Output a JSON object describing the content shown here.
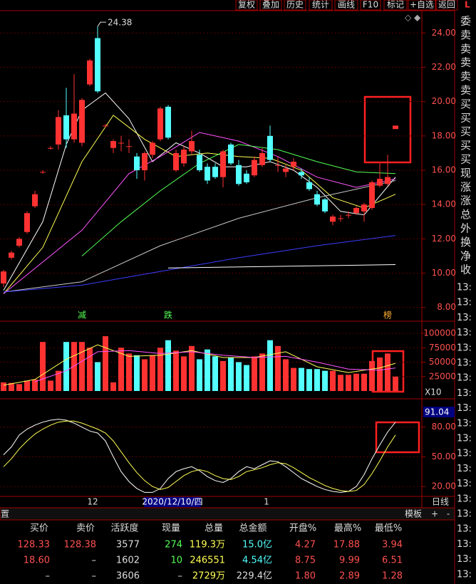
{
  "toolbar": [
    "复权",
    "叠加",
    "历史",
    "统计",
    "画线",
    "F10",
    "标记",
    "+自选",
    "返回"
  ],
  "corner_label": "L",
  "side_labels": [
    "委",
    "卖",
    "卖",
    "卖",
    "卖",
    "卖",
    "买",
    "买",
    "买",
    "买",
    "买",
    "现",
    "涨",
    "涨",
    "总",
    "外",
    "换",
    "净",
    "收"
  ],
  "side_times": [
    "13:",
    "13:",
    "13:",
    "13:",
    "13:",
    "13:",
    "13:",
    "13:",
    "13:",
    "13:",
    "13:",
    "13:",
    "13:",
    "13:",
    "13:",
    "13:",
    "13:",
    "13:",
    "13:",
    "13:"
  ],
  "price_chart": {
    "type": "candlestick",
    "ylim": [
      7.2,
      25.3
    ],
    "yticks": [
      {
        "value": 24,
        "label": "24.00"
      },
      {
        "value": 22,
        "label": "22.00"
      },
      {
        "value": 20,
        "label": "20.00"
      },
      {
        "value": 18,
        "label": "18.00"
      },
      {
        "value": 16,
        "label": "16.00"
      },
      {
        "value": 14,
        "label": "14.00"
      },
      {
        "value": 12,
        "label": "12.00"
      },
      {
        "value": 10,
        "label": "10.00"
      },
      {
        "value": 8,
        "label": "8.00"
      }
    ],
    "up_color": "#ff3232",
    "down_color": "#54ffff",
    "candles": [
      [
        9.4,
        10.2,
        9.2,
        10.1
      ],
      [
        10.9,
        11.3,
        10.8,
        11.2
      ],
      [
        11.6,
        12.1,
        11.5,
        12.0
      ],
      [
        12.4,
        13.6,
        12.3,
        13.5
      ],
      [
        13.9,
        14.8,
        13.8,
        14.6
      ],
      [
        15.9,
        16.0,
        15.8,
        15.9
      ],
      [
        17.3,
        17.4,
        17.2,
        17.3
      ],
      [
        17.5,
        19.5,
        17.2,
        19.1
      ],
      [
        19.2,
        20.8,
        17.3,
        17.8
      ],
      [
        17.8,
        21.6,
        17.6,
        19.3
      ],
      [
        17.6,
        20.2,
        17.4,
        20.1
      ],
      [
        21.0,
        22.5,
        20.9,
        22.4
      ],
      [
        23.7,
        24.38,
        20.5,
        20.6
      ],
      [
        18.6,
        18.7,
        18.5,
        18.6
      ],
      [
        17.3,
        17.8,
        17.0,
        17.7
      ],
      [
        17.6,
        18.0,
        17.1,
        17.6
      ],
      [
        17.4,
        17.8,
        17.0,
        17.4
      ],
      [
        16.8,
        17.0,
        15.5,
        16.0
      ],
      [
        16.0,
        17.1,
        15.4,
        17.0
      ],
      [
        16.9,
        17.7,
        16.7,
        17.6
      ],
      [
        17.8,
        19.7,
        17.7,
        19.6
      ],
      [
        19.7,
        19.8,
        17.8,
        17.9
      ],
      [
        16.0,
        17.2,
        15.9,
        17.0
      ],
      [
        16.4,
        17.4,
        16.2,
        17.2
      ],
      [
        17.1,
        18.3,
        16.9,
        17.7
      ],
      [
        16.9,
        17.2,
        15.9,
        16.0
      ],
      [
        16.2,
        16.4,
        15.2,
        15.4
      ],
      [
        16.2,
        16.4,
        15.5,
        15.6
      ],
      [
        15.6,
        17.2,
        15.0,
        17.1
      ],
      [
        17.5,
        17.6,
        16.3,
        16.4
      ],
      [
        16.3,
        16.6,
        15.1,
        15.2
      ],
      [
        15.8,
        16.0,
        15.2,
        15.3
      ],
      [
        15.7,
        16.8,
        15.6,
        16.6
      ],
      [
        16.3,
        17.3,
        16.2,
        17.0
      ],
      [
        18.0,
        18.6,
        16.5,
        16.6
      ],
      [
        16.3,
        16.8,
        15.9,
        16.3
      ],
      [
        15.9,
        16.3,
        15.6,
        16.1
      ],
      [
        16.2,
        16.7,
        16.0,
        16.5
      ],
      [
        15.9,
        16.1,
        15.5,
        15.7
      ],
      [
        15.3,
        15.6,
        14.8,
        14.9
      ],
      [
        14.6,
        14.8,
        13.9,
        14.0
      ],
      [
        14.3,
        14.4,
        13.5,
        13.6
      ],
      [
        13.0,
        13.4,
        12.8,
        13.3
      ],
      [
        13.2,
        13.4,
        13.0,
        13.2
      ],
      [
        13.4,
        13.6,
        13.2,
        13.4
      ],
      [
        13.5,
        13.9,
        13.4,
        13.8
      ],
      [
        13.6,
        14.1,
        13.0,
        14.0
      ],
      [
        13.8,
        15.4,
        13.7,
        15.3
      ],
      [
        15.1,
        16.4,
        15.0,
        15.5
      ],
      [
        15.2,
        16.9,
        15.1,
        15.6
      ],
      [
        18.4,
        18.6,
        18.4,
        18.6
      ]
    ],
    "ma_lines": [
      {
        "color": "#ffffff",
        "points": [
          [
            0,
            9.0
          ],
          [
            5,
            13.0
          ],
          [
            8,
            17.5
          ],
          [
            10,
            19.5
          ],
          [
            13,
            20.5
          ],
          [
            16,
            19.0
          ],
          [
            19,
            16.5
          ],
          [
            22,
            17.6
          ],
          [
            25,
            17.0
          ],
          [
            28,
            16.2
          ],
          [
            31,
            16.2
          ],
          [
            34,
            16.5
          ],
          [
            37,
            16.0
          ],
          [
            40,
            15.0
          ],
          [
            43,
            13.6
          ],
          [
            46,
            13.4
          ],
          [
            50,
            15.6
          ]
        ]
      },
      {
        "color": "#ffff54",
        "points": [
          [
            0,
            8.8
          ],
          [
            5,
            11.5
          ],
          [
            10,
            16.5
          ],
          [
            14,
            19.2
          ],
          [
            18,
            17.8
          ],
          [
            22,
            16.8
          ],
          [
            26,
            17.0
          ],
          [
            30,
            16.8
          ],
          [
            34,
            16.7
          ],
          [
            38,
            16.0
          ],
          [
            42,
            14.4
          ],
          [
            46,
            13.8
          ],
          [
            50,
            14.6
          ]
        ]
      },
      {
        "color": "#ff54ff",
        "points": [
          [
            0,
            8.8
          ],
          [
            10,
            12.5
          ],
          [
            16,
            15.8
          ],
          [
            20,
            16.8
          ],
          [
            25,
            18.2
          ],
          [
            30,
            17.7
          ],
          [
            35,
            16.8
          ],
          [
            40,
            15.6
          ],
          [
            45,
            15.0
          ],
          [
            50,
            15.5
          ]
        ]
      },
      {
        "color": "#54ff54",
        "points": [
          [
            10,
            11.0
          ],
          [
            15,
            13.0
          ],
          [
            20,
            14.8
          ],
          [
            25,
            16.4
          ],
          [
            30,
            17.5
          ],
          [
            35,
            17.2
          ],
          [
            40,
            16.5
          ],
          [
            45,
            15.9
          ],
          [
            50,
            15.8
          ]
        ]
      },
      {
        "color": "#c8c8c8",
        "points": [
          [
            0,
            8.9
          ],
          [
            10,
            9.5
          ],
          [
            20,
            11.6
          ],
          [
            30,
            13.2
          ],
          [
            40,
            14.4
          ],
          [
            50,
            15.4
          ]
        ]
      },
      {
        "color": "#3c3cff",
        "points": [
          [
            0,
            8.9
          ],
          [
            10,
            9.3
          ],
          [
            20,
            10.1
          ],
          [
            30,
            10.9
          ],
          [
            40,
            11.6
          ],
          [
            50,
            12.2
          ]
        ]
      },
      {
        "color": "#ffffff",
        "points": [
          [
            21,
            10.3
          ],
          [
            50,
            10.5
          ]
        ]
      }
    ],
    "high_label": "24.38",
    "markers": [
      {
        "index": 10,
        "text": "减"
      },
      {
        "index": 21,
        "text": "跌"
      },
      {
        "index": 49,
        "text": "榜"
      }
    ]
  },
  "volume_chart": {
    "type": "bar",
    "ylim": [
      0,
      100000
    ],
    "yticks": [
      100000,
      75000,
      50000,
      25000
    ],
    "unit_label": "X10",
    "values": [
      15000,
      14000,
      12000,
      18000,
      20000,
      85000,
      18000,
      35000,
      85000,
      85000,
      85000,
      75000,
      50000,
      95000,
      15000,
      75000,
      65000,
      62000,
      55000,
      62000,
      75000,
      88000,
      70000,
      60000,
      78000,
      55000,
      72000,
      60000,
      52000,
      58000,
      50000,
      45000,
      60000,
      65000,
      88000,
      78000,
      55000,
      40000,
      40000,
      38000,
      38000,
      35000,
      35000,
      28000,
      28000,
      30000,
      30000,
      52000,
      58000,
      65000,
      25000
    ],
    "ma_lines": [
      {
        "color": "#ffff54",
        "points": [
          [
            0,
            10000
          ],
          [
            4,
            20000
          ],
          [
            8,
            55000
          ],
          [
            12,
            80000
          ],
          [
            16,
            60000
          ],
          [
            20,
            62000
          ],
          [
            24,
            70000
          ],
          [
            28,
            58000
          ],
          [
            32,
            58000
          ],
          [
            36,
            68000
          ],
          [
            40,
            42000
          ],
          [
            44,
            32000
          ],
          [
            48,
            40000
          ],
          [
            50,
            48000
          ]
        ]
      },
      {
        "color": "#ff54ff",
        "points": [
          [
            4,
            16000
          ],
          [
            8,
            35000
          ],
          [
            12,
            68000
          ],
          [
            16,
            70000
          ],
          [
            20,
            65000
          ],
          [
            24,
            68000
          ],
          [
            28,
            62000
          ],
          [
            32,
            58000
          ],
          [
            36,
            60000
          ],
          [
            40,
            50000
          ],
          [
            44,
            38000
          ],
          [
            48,
            36000
          ],
          [
            50,
            40000
          ]
        ]
      }
    ]
  },
  "kdj_chart": {
    "type": "line",
    "ylim": [
      10,
      92
    ],
    "yticks": [
      {
        "value": 80,
        "label": "80.00"
      },
      {
        "value": 50,
        "label": "50.00"
      },
      {
        "value": 20,
        "label": "20.00"
      }
    ],
    "current": "91.04",
    "series": [
      {
        "color": "#ffffff",
        "values": [
          52,
          60,
          72,
          78,
          82,
          85,
          87,
          88,
          87,
          84,
          80,
          76,
          74,
          66,
          50,
          35,
          25,
          18,
          14,
          14,
          18,
          28,
          35,
          38,
          40,
          36,
          30,
          26,
          24,
          28,
          35,
          40,
          38,
          42,
          46,
          45,
          40,
          34,
          28,
          24,
          20,
          17,
          15,
          14,
          15,
          20,
          32,
          48,
          62,
          75,
          85
        ]
      },
      {
        "color": "#ffff54",
        "values": [
          40,
          48,
          58,
          66,
          73,
          78,
          82,
          85,
          86,
          86,
          84,
          81,
          78,
          74,
          66,
          55,
          44,
          34,
          26,
          20,
          17,
          19,
          25,
          31,
          35,
          37,
          35,
          31,
          28,
          27,
          30,
          35,
          37,
          39,
          42,
          44,
          43,
          39,
          34,
          29,
          25,
          21,
          18,
          16,
          15,
          16,
          22,
          33,
          46,
          60,
          72
        ]
      }
    ]
  },
  "date_bar": {
    "month_a": "12",
    "cursor_date": "2020/12/10/四",
    "month_b": "1",
    "period": "日线"
  },
  "bottom_bar": {
    "left": "置",
    "template": "模板",
    "plus": "+",
    "minus": "-"
  },
  "table": {
    "headers": [
      "买价",
      "卖价",
      "活跃度",
      "现量",
      "总量",
      "总金额",
      "开盘%",
      "最高%",
      "最低%"
    ],
    "rows": [
      [
        "128.33",
        "128.38",
        "3577",
        "274",
        "119.3万",
        "15.0亿",
        "4.27",
        "17.88",
        "3.94"
      ],
      [
        "18.60",
        "–",
        "1602",
        "10",
        "246551",
        "4.54亿",
        "8.75",
        "9.99",
        "6.51"
      ],
      [
        "–",
        "–",
        "3606",
        "–",
        "2729万",
        "229.4亿",
        "1.80",
        "2.89",
        "1.28"
      ]
    ]
  }
}
